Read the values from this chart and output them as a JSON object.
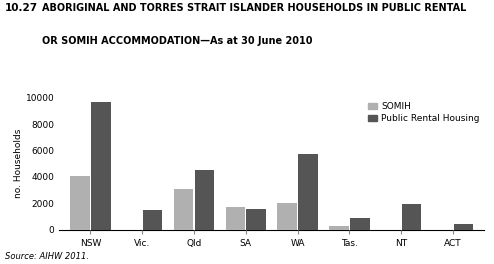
{
  "categories": [
    "NSW",
    "Vic.",
    "Qld",
    "SA",
    "WA",
    "Tas.",
    "NT",
    "ACT"
  ],
  "somih": [
    4100,
    0,
    3100,
    1750,
    2000,
    300,
    0,
    0
  ],
  "public_rental": [
    9700,
    1500,
    4550,
    1600,
    5700,
    850,
    1950,
    450
  ],
  "somih_color": "#b0b0b0",
  "public_rental_color": "#555555",
  "title_prefix": "10.27",
  "title_main": "  ABORIGINAL AND TORRES STRAIT ISLANDER HOUSEHOLDS IN PUBLIC RENTAL\n  OR SOMIH ACCOMMODATION—As at 30 June 2010",
  "ylabel": "no. Households",
  "ylim": [
    0,
    10000
  ],
  "yticks": [
    0,
    2000,
    4000,
    6000,
    8000,
    10000
  ],
  "source": "Source: AIHW 2011.",
  "legend_somih": "SOMIH",
  "legend_public": "Public Rental Housing",
  "bar_width": 0.38,
  "bar_gap": 0.02
}
